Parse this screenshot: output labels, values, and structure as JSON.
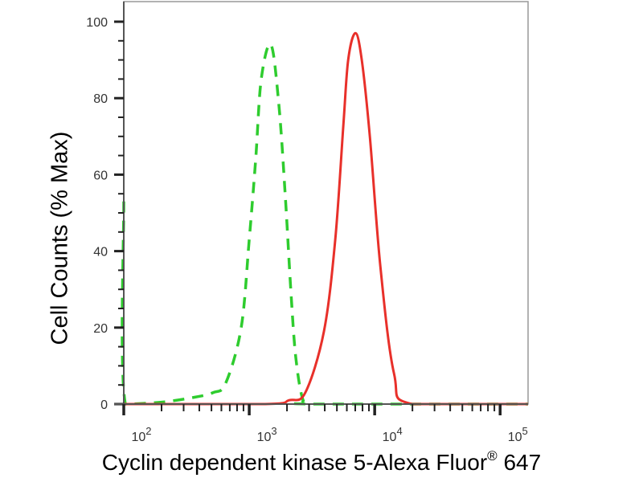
{
  "chart_data": {
    "type": "line",
    "title": "",
    "xlabel": "Cyclin dependent kinase 5-Alexa Fluor",
    "xlabel_superscript": "®",
    "xlabel_suffix": " 647",
    "ylabel": "Cell Counts (% Max)",
    "x_scale": "log",
    "xlim": [
      100,
      167000
    ],
    "ylim": [
      0,
      105
    ],
    "x_ticks": [
      100,
      1000,
      10000,
      100000
    ],
    "x_tick_labels": [
      {
        "base": "10",
        "exp": "2"
      },
      {
        "base": "10",
        "exp": "3"
      },
      {
        "base": "10",
        "exp": "4"
      },
      {
        "base": "10",
        "exp": "5"
      }
    ],
    "y_ticks": [
      0,
      20,
      40,
      60,
      80,
      100
    ],
    "y_tick_labels": [
      "0",
      "20",
      "40",
      "60",
      "80",
      "100"
    ],
    "grid": false,
    "legend": "none",
    "series": [
      {
        "style": "dashed",
        "color": "#2ecc2e",
        "points": [
          [
            100,
            53
          ],
          [
            103,
            0
          ],
          [
            200,
            0.5
          ],
          [
            355,
            1.7
          ],
          [
            515,
            3
          ],
          [
            650,
            5.5
          ],
          [
            863,
            20
          ],
          [
            1000,
            43
          ],
          [
            1126,
            64
          ],
          [
            1247,
            85
          ],
          [
            1490,
            94
          ],
          [
            1726,
            78
          ],
          [
            1942,
            54
          ],
          [
            2153,
            29
          ],
          [
            2354,
            12
          ],
          [
            2690,
            1
          ],
          [
            3200,
            0
          ],
          [
            167000,
            0
          ]
        ]
      },
      {
        "style": "solid",
        "color": "#e8302a",
        "points": [
          [
            100,
            0
          ],
          [
            1340,
            0
          ],
          [
            2080,
            1
          ],
          [
            2800,
            3
          ],
          [
            3940,
            19
          ],
          [
            4850,
            43
          ],
          [
            5630,
            73
          ],
          [
            6150,
            90
          ],
          [
            7020,
            97
          ],
          [
            7890,
            90
          ],
          [
            9150,
            70
          ],
          [
            11100,
            36
          ],
          [
            14260,
            8
          ],
          [
            19900,
            0
          ],
          [
            167000,
            0
          ]
        ]
      }
    ]
  }
}
